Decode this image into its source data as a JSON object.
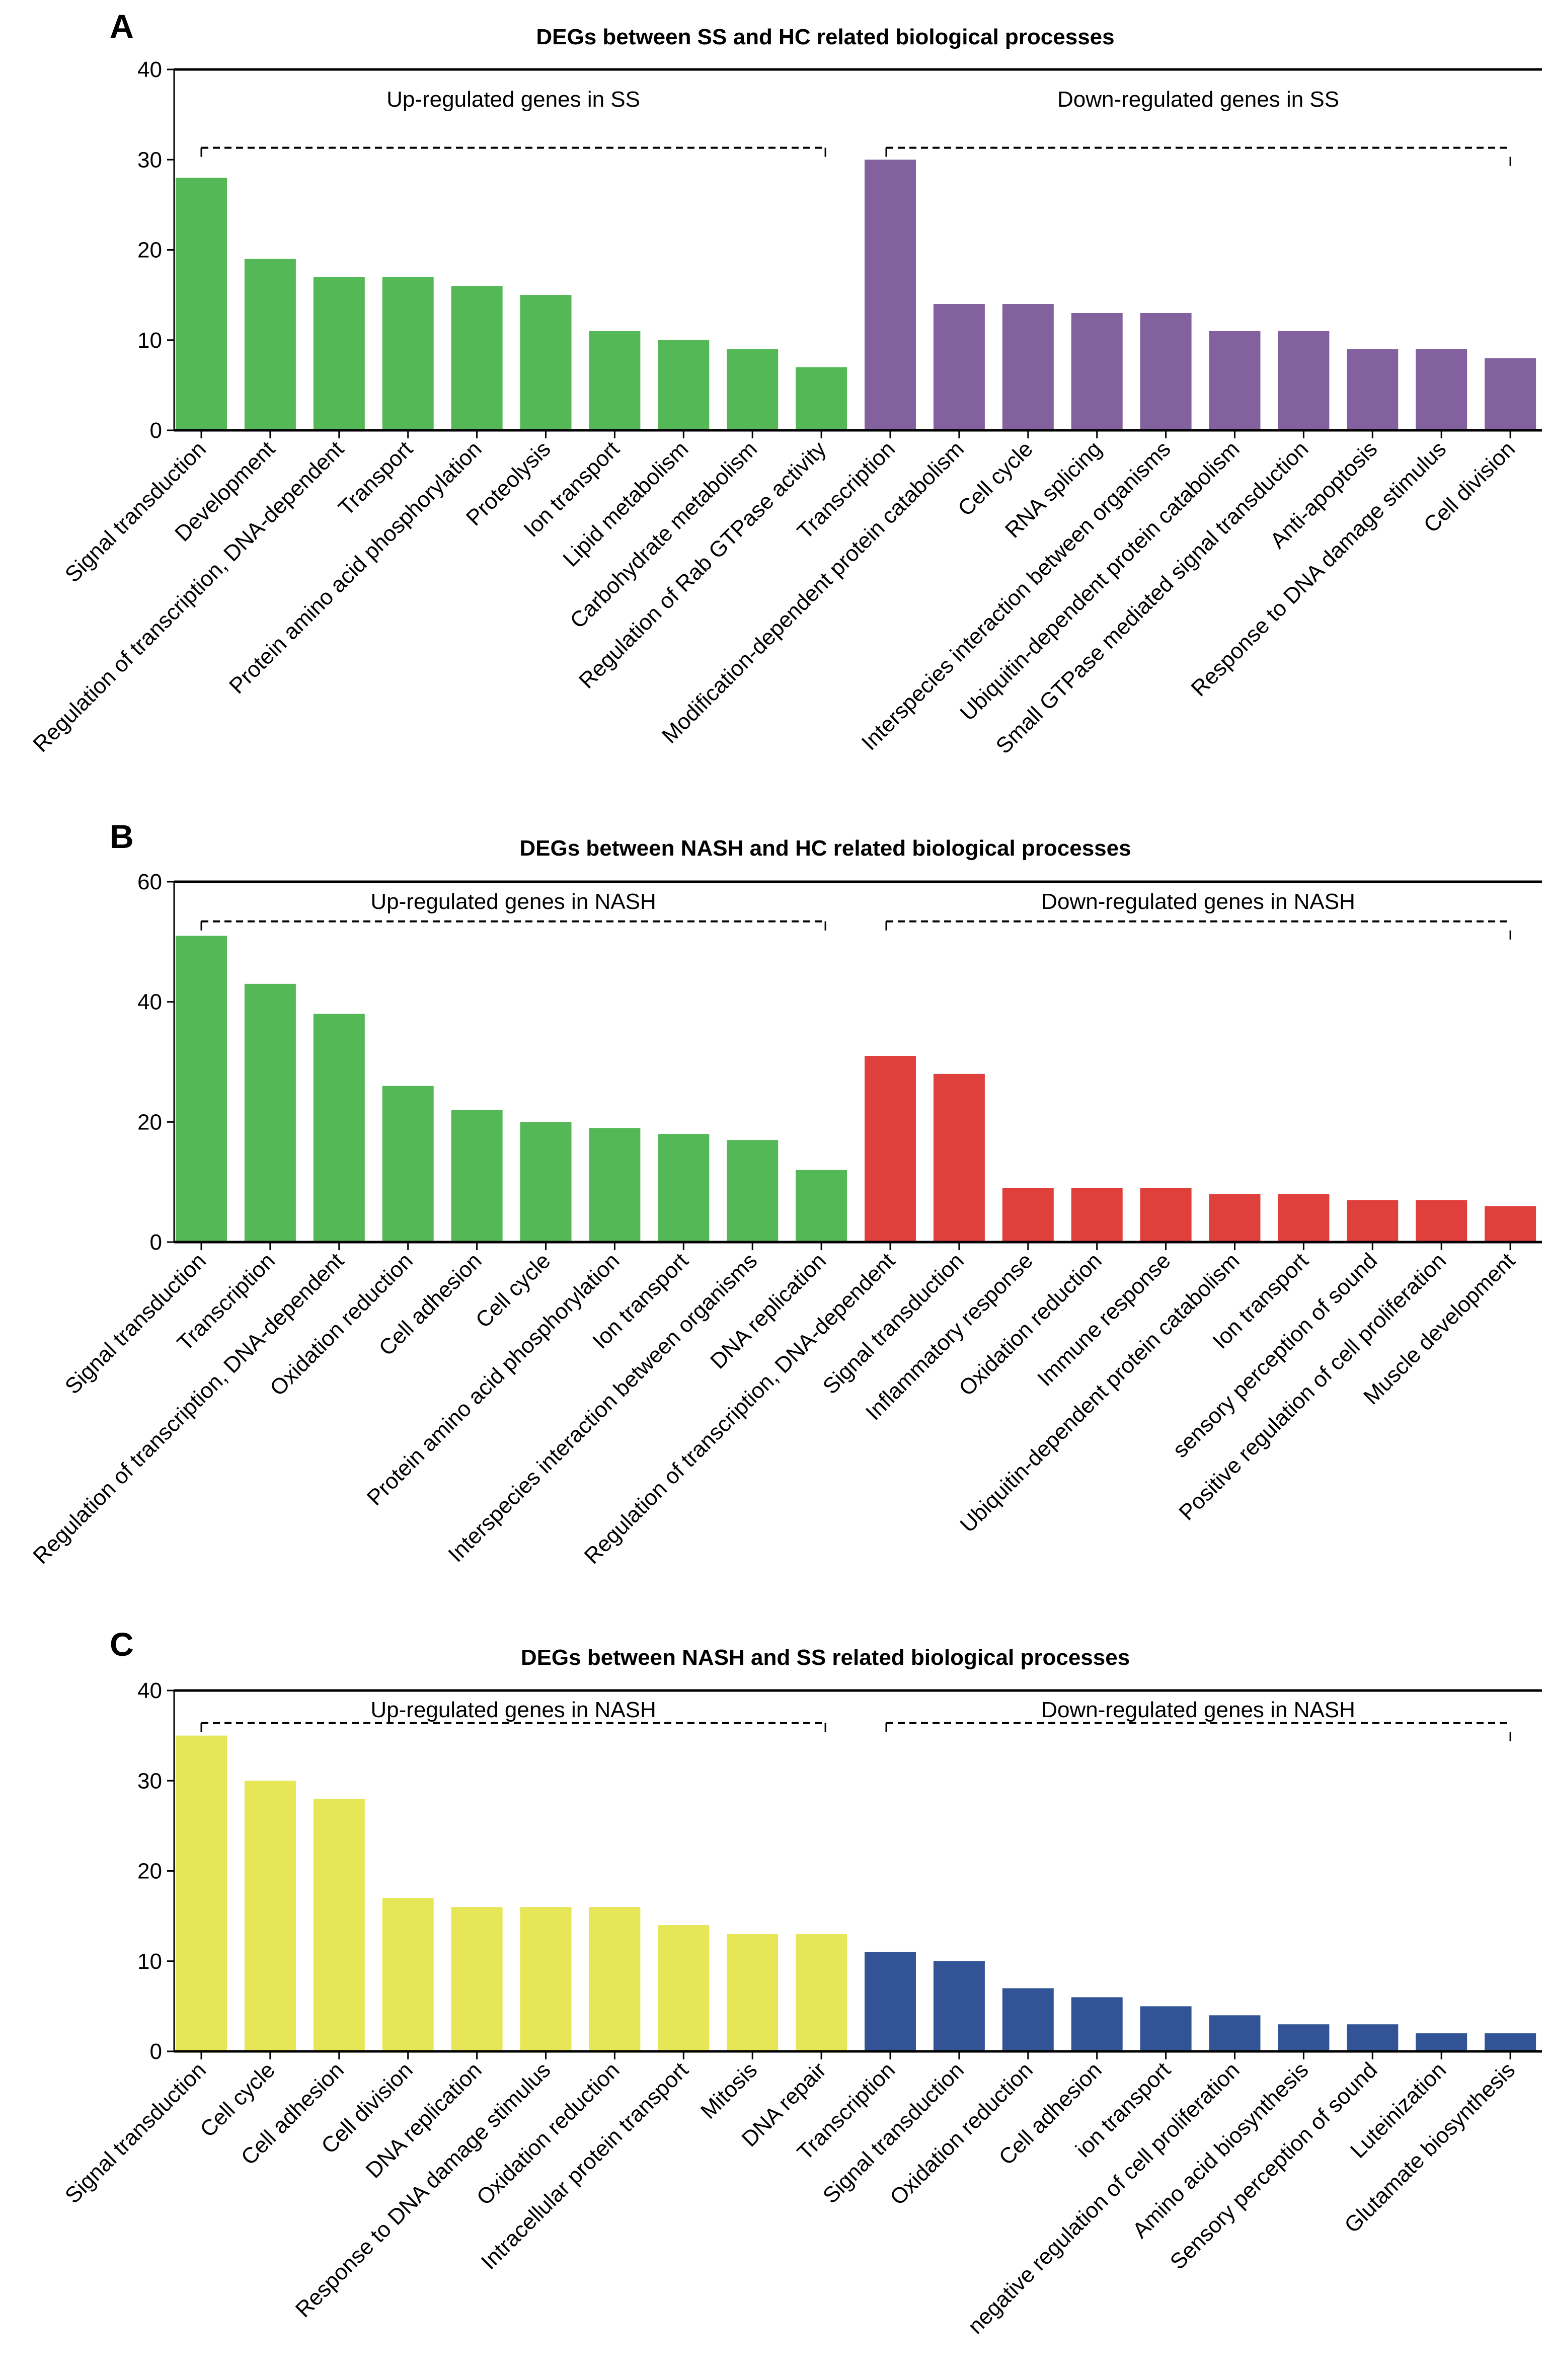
{
  "chart_data": [
    {
      "panel": "A",
      "type": "bar",
      "title": "DEGs between SS and HC related biological processes",
      "ylim": [
        0,
        40
      ],
      "yticks": [
        0,
        10,
        20,
        30,
        40
      ],
      "group_labels": [
        "Up-regulated genes in SS",
        "Down-regulated genes in SS"
      ],
      "colors": [
        "#53b855",
        "#83609e"
      ],
      "categories": [
        "Signal transduction",
        "Development",
        "Regulation of transcription, DNA-dependent",
        "Transport",
        "Protein amino acid phosphorylation",
        "Proteolysis",
        "Ion transport",
        "Lipid metabolism",
        "Carbohydrate metabolism",
        "Regulation of Rab GTPase activity",
        "Transcription",
        "Modification-dependent protein catabolism",
        "Cell cycle",
        "RNA splicing",
        "Interspecies interaction between organisms",
        "Ubiquitin-dependent protein catabolism",
        "Small GTPase mediated signal transduction",
        "Anti-apoptosis",
        "Response to DNA damage stimulus",
        "Cell division"
      ],
      "values": [
        28,
        19,
        17,
        17,
        16,
        15,
        11,
        10,
        9,
        7,
        30,
        14,
        14,
        13,
        13,
        11,
        11,
        9,
        9,
        8
      ]
    },
    {
      "panel": "B",
      "type": "bar",
      "title": "DEGs between NASH and HC related biological processes",
      "ylim": [
        0,
        60
      ],
      "yticks": [
        0,
        20,
        40,
        60
      ],
      "group_labels": [
        "Up-regulated genes in NASH",
        "Down-regulated genes in NASH"
      ],
      "colors": [
        "#53b855",
        "#e0403c"
      ],
      "categories": [
        "Signal transduction",
        "Transcription",
        "Regulation of transcription, DNA-dependent",
        "Oxidation reduction",
        "Cell adhesion",
        "Cell cycle",
        "Protein amino acid phosphorylation",
        "Ion transport",
        "Interspecies interaction between organisms",
        "DNA replication",
        "Regulation of transcription, DNA-dependent",
        "Signal transduction",
        "Inflammatory response",
        "Oxidation reduction",
        "Immune response",
        "Ubiquitin-dependent protein catabolism",
        "Ion transport",
        "sensory perception of sound",
        "Positive regulation of cell proliferation",
        "Muscle development"
      ],
      "values": [
        51,
        43,
        38,
        26,
        22,
        20,
        19,
        18,
        17,
        12,
        31,
        28,
        9,
        9,
        9,
        8,
        8,
        7,
        7,
        6
      ]
    },
    {
      "panel": "C",
      "type": "bar",
      "title": "DEGs between NASH and SS related biological processes",
      "ylim": [
        0,
        40
      ],
      "yticks": [
        0,
        10,
        20,
        30,
        40
      ],
      "group_labels": [
        "Up-regulated genes in NASH",
        "Down-regulated genes in NASH"
      ],
      "colors": [
        "#e6e656",
        "#325497"
      ],
      "categories": [
        "Signal transduction",
        "Cell cycle",
        "Cell adhesion",
        "Cell division",
        "DNA replication",
        "Response to DNA damage stimulus",
        "Oxidation reduction",
        "Intracellular protein transport",
        "Mitosis",
        "DNA repair",
        "Transcription",
        "Signal transduction",
        "Oxidation reduction",
        "Cell adhesion",
        "ion transport",
        "negative regulation of cell proliferation",
        "Amino acid biosynthesis",
        "Sensory perception of sound",
        "Luteinization",
        "Glutamate biosynthesis"
      ],
      "values": [
        35,
        30,
        28,
        17,
        16,
        16,
        16,
        14,
        13,
        13,
        11,
        10,
        7,
        6,
        5,
        4,
        3,
        3,
        2,
        2
      ]
    }
  ]
}
